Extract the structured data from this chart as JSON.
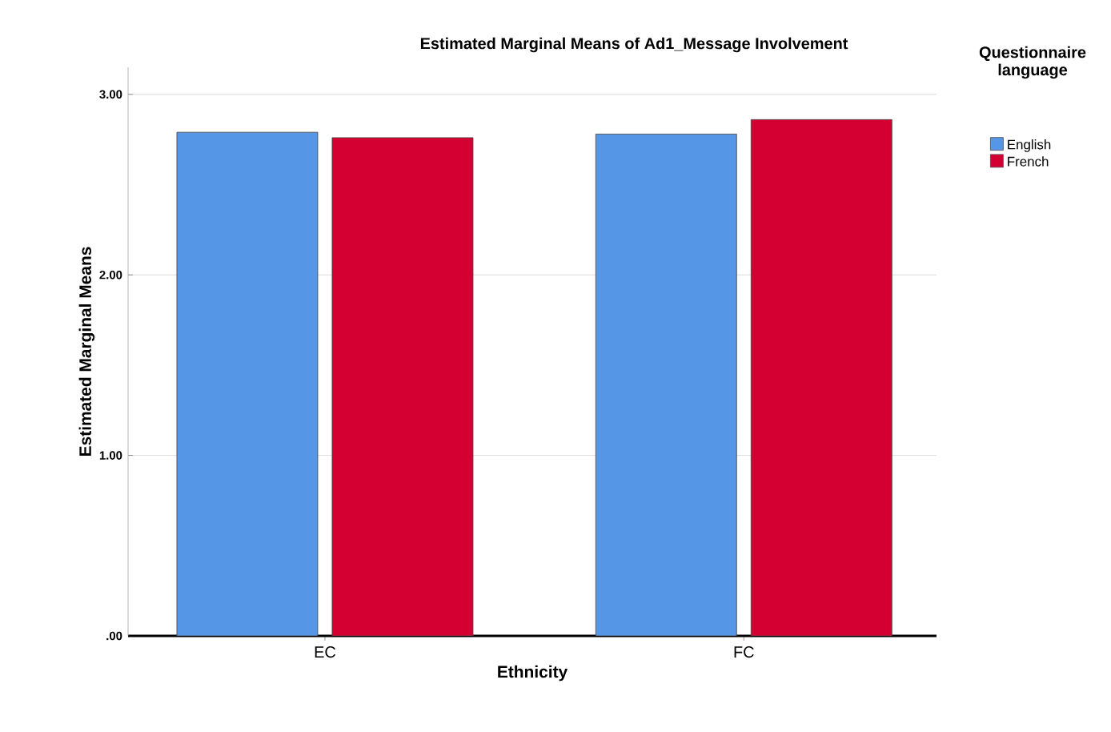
{
  "chart_data": {
    "type": "bar",
    "title": "Estimated Marginal Means of Ad1_Message Involvement",
    "xlabel": "Ethnicity",
    "ylabel": "Estimated Marginal Means",
    "legend_title": "Questionnaire language",
    "categories": [
      "EC",
      "FC"
    ],
    "series": [
      {
        "name": "English",
        "color": "#5596e6",
        "values": [
          2.79,
          2.78
        ]
      },
      {
        "name": "French",
        "color": "#d50032",
        "values": [
          2.76,
          2.86
        ]
      }
    ],
    "ylim": [
      0,
      3.15
    ],
    "yticks": [
      {
        "value": 0,
        "label": ".00"
      },
      {
        "value": 1,
        "label": "1.00"
      },
      {
        "value": 2,
        "label": "2.00"
      },
      {
        "value": 3,
        "label": "3.00"
      }
    ],
    "grid": "y",
    "legend": "top right"
  }
}
